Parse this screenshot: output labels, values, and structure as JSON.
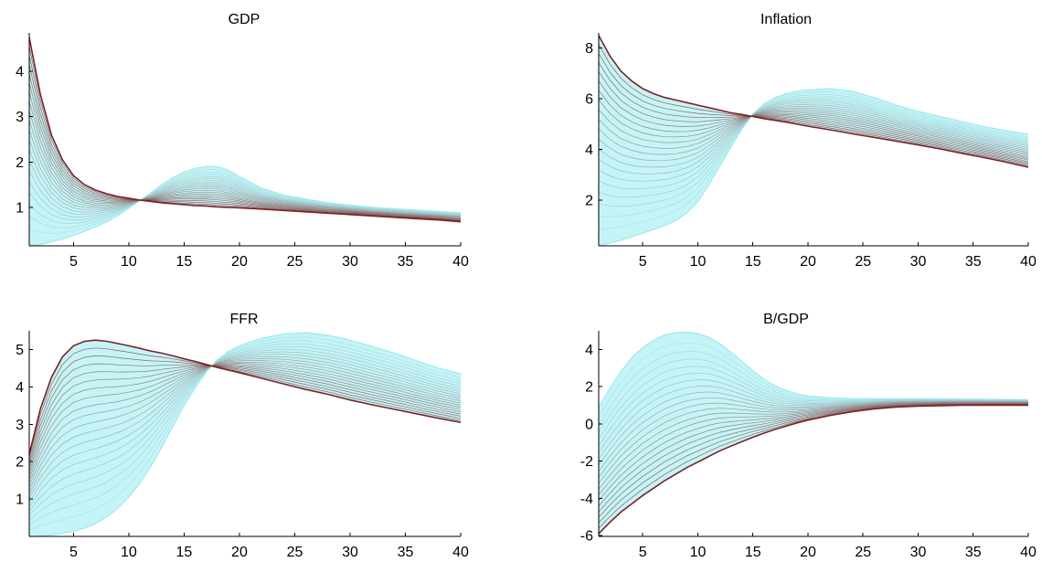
{
  "chart_data": [
    {
      "type": "area",
      "title": "GDP",
      "xlabel": "",
      "ylabel": "",
      "xlim": [
        1,
        40
      ],
      "ylim": [
        0.15,
        4.85
      ],
      "xticks": [
        5,
        10,
        15,
        20,
        25,
        30,
        35,
        40
      ],
      "yticks": [
        1,
        2,
        3,
        4
      ],
      "grid": false,
      "fan_count": 20,
      "band_colors": {
        "start": "#9fe9ee",
        "end": "#7a2224",
        "fill": "#7fe6ec"
      },
      "series": [
        {
          "name": "",
          "x": [
            1,
            2,
            3,
            4,
            5,
            6,
            7,
            8,
            9,
            10,
            11,
            12,
            13,
            14,
            15,
            16,
            17,
            18,
            19,
            20,
            22,
            24,
            26,
            28,
            30,
            32,
            34,
            36,
            38,
            40
          ],
          "values": [
            4.75,
            3.5,
            2.6,
            2.05,
            1.7,
            1.5,
            1.38,
            1.3,
            1.24,
            1.2,
            1.16,
            1.13,
            1.1,
            1.08,
            1.06,
            1.04,
            1.03,
            1.01,
            1.0,
            0.99,
            0.96,
            0.93,
            0.9,
            0.87,
            0.84,
            0.81,
            0.78,
            0.75,
            0.72,
            0.68
          ]
        },
        {
          "name": "",
          "x": [
            1,
            2,
            3,
            4,
            5,
            6,
            7,
            8,
            9,
            10,
            11,
            12,
            13,
            14,
            15,
            16,
            17,
            18,
            19,
            20,
            22,
            24,
            26,
            28,
            30,
            32,
            34,
            36,
            38,
            40
          ],
          "values": [
            0.15,
            0.18,
            0.24,
            0.3,
            0.38,
            0.47,
            0.57,
            0.68,
            0.82,
            0.98,
            1.15,
            1.32,
            1.5,
            1.66,
            1.78,
            1.86,
            1.9,
            1.9,
            1.82,
            1.68,
            1.42,
            1.27,
            1.18,
            1.1,
            1.05,
            1.0,
            0.97,
            0.94,
            0.91,
            0.88
          ]
        }
      ]
    },
    {
      "type": "area",
      "title": "Inflation",
      "xlabel": "",
      "ylabel": "",
      "xlim": [
        1,
        40
      ],
      "ylim": [
        0.2,
        8.6
      ],
      "xticks": [
        5,
        10,
        15,
        20,
        25,
        30,
        35,
        40
      ],
      "yticks": [
        2,
        4,
        6,
        8
      ],
      "grid": false,
      "fan_count": 20,
      "band_colors": {
        "start": "#9fe9ee",
        "end": "#7a2224",
        "fill": "#7fe6ec"
      },
      "series": [
        {
          "name": "",
          "x": [
            1,
            2,
            3,
            4,
            5,
            6,
            7,
            8,
            9,
            10,
            11,
            12,
            13,
            14,
            15,
            16,
            17,
            18,
            19,
            20,
            22,
            24,
            26,
            28,
            30,
            32,
            34,
            36,
            38,
            40
          ],
          "values": [
            8.5,
            7.7,
            7.1,
            6.7,
            6.4,
            6.2,
            6.05,
            5.95,
            5.85,
            5.75,
            5.65,
            5.55,
            5.45,
            5.38,
            5.3,
            5.22,
            5.15,
            5.08,
            5.0,
            4.92,
            4.78,
            4.62,
            4.48,
            4.33,
            4.18,
            4.02,
            3.85,
            3.68,
            3.5,
            3.3
          ]
        },
        {
          "name": "",
          "x": [
            1,
            2,
            3,
            4,
            5,
            6,
            7,
            8,
            9,
            10,
            11,
            12,
            13,
            14,
            15,
            16,
            17,
            18,
            19,
            20,
            22,
            24,
            26,
            28,
            30,
            32,
            34,
            36,
            38,
            40
          ],
          "values": [
            0.2,
            0.3,
            0.42,
            0.56,
            0.7,
            0.85,
            1.0,
            1.2,
            1.5,
            1.95,
            2.6,
            3.35,
            4.1,
            4.8,
            5.4,
            5.8,
            6.05,
            6.2,
            6.3,
            6.35,
            6.4,
            6.3,
            6.05,
            5.75,
            5.5,
            5.3,
            5.1,
            4.9,
            4.75,
            4.6
          ]
        }
      ]
    },
    {
      "type": "area",
      "title": "FFR",
      "xlabel": "",
      "ylabel": "",
      "xlim": [
        1,
        40
      ],
      "ylim": [
        0,
        5.5
      ],
      "xticks": [
        5,
        10,
        15,
        20,
        25,
        30,
        35,
        40
      ],
      "yticks": [
        1,
        2,
        3,
        4,
        5
      ],
      "grid": false,
      "fan_count": 20,
      "band_colors": {
        "start": "#9fe9ee",
        "end": "#7a2224",
        "fill": "#7fe6ec"
      },
      "series": [
        {
          "name": "",
          "x": [
            1,
            2,
            3,
            4,
            5,
            6,
            7,
            8,
            9,
            10,
            11,
            12,
            13,
            14,
            15,
            16,
            17,
            18,
            19,
            20,
            22,
            24,
            26,
            28,
            30,
            32,
            34,
            36,
            38,
            40
          ],
          "values": [
            2.2,
            3.4,
            4.25,
            4.8,
            5.1,
            5.22,
            5.25,
            5.22,
            5.16,
            5.1,
            5.03,
            4.96,
            4.9,
            4.83,
            4.75,
            4.68,
            4.6,
            4.52,
            4.45,
            4.38,
            4.23,
            4.08,
            3.93,
            3.8,
            3.65,
            3.52,
            3.4,
            3.28,
            3.16,
            3.05
          ]
        },
        {
          "name": "",
          "x": [
            1,
            2,
            3,
            4,
            5,
            6,
            7,
            8,
            9,
            10,
            11,
            12,
            13,
            14,
            15,
            16,
            17,
            18,
            19,
            20,
            22,
            24,
            26,
            28,
            30,
            32,
            34,
            36,
            38,
            40
          ],
          "values": [
            0.0,
            0.01,
            0.04,
            0.08,
            0.14,
            0.22,
            0.34,
            0.52,
            0.75,
            1.05,
            1.42,
            1.88,
            2.4,
            2.95,
            3.5,
            3.98,
            4.4,
            4.72,
            4.95,
            5.1,
            5.3,
            5.42,
            5.45,
            5.38,
            5.25,
            5.08,
            4.9,
            4.7,
            4.5,
            4.35
          ]
        }
      ]
    },
    {
      "type": "area",
      "title": "B/GDP",
      "xlabel": "",
      "ylabel": "",
      "xlim": [
        1,
        40
      ],
      "ylim": [
        -6.05,
        5.0
      ],
      "xticks": [
        5,
        10,
        15,
        20,
        25,
        30,
        35,
        40
      ],
      "yticks": [
        -6,
        -4,
        -2,
        0,
        2,
        4
      ],
      "grid": false,
      "fan_count": 20,
      "band_colors": {
        "start": "#9fe9ee",
        "end": "#7a2224",
        "fill": "#7fe6ec"
      },
      "series": [
        {
          "name": "",
          "x": [
            1,
            2,
            3,
            4,
            5,
            6,
            7,
            8,
            9,
            10,
            11,
            12,
            13,
            14,
            15,
            16,
            17,
            18,
            19,
            20,
            22,
            24,
            26,
            28,
            30,
            32,
            34,
            36,
            38,
            40
          ],
          "values": [
            -5.9,
            -5.3,
            -4.75,
            -4.3,
            -3.85,
            -3.45,
            -3.05,
            -2.7,
            -2.35,
            -2.05,
            -1.75,
            -1.45,
            -1.2,
            -0.95,
            -0.72,
            -0.5,
            -0.3,
            -0.12,
            0.05,
            0.2,
            0.45,
            0.65,
            0.8,
            0.9,
            0.95,
            0.98,
            1.0,
            1.0,
            1.0,
            1.0
          ]
        },
        {
          "name": "",
          "x": [
            1,
            2,
            3,
            4,
            5,
            6,
            7,
            8,
            9,
            10,
            11,
            12,
            13,
            14,
            15,
            16,
            17,
            18,
            19,
            20,
            22,
            24,
            26,
            28,
            30,
            32,
            34,
            36,
            38,
            40
          ],
          "values": [
            0.9,
            1.9,
            2.8,
            3.55,
            4.1,
            4.5,
            4.78,
            4.9,
            4.92,
            4.85,
            4.65,
            4.3,
            3.85,
            3.35,
            2.85,
            2.4,
            2.05,
            1.8,
            1.62,
            1.5,
            1.4,
            1.36,
            1.35,
            1.35,
            1.35,
            1.34,
            1.33,
            1.32,
            1.31,
            1.3
          ]
        }
      ]
    }
  ]
}
